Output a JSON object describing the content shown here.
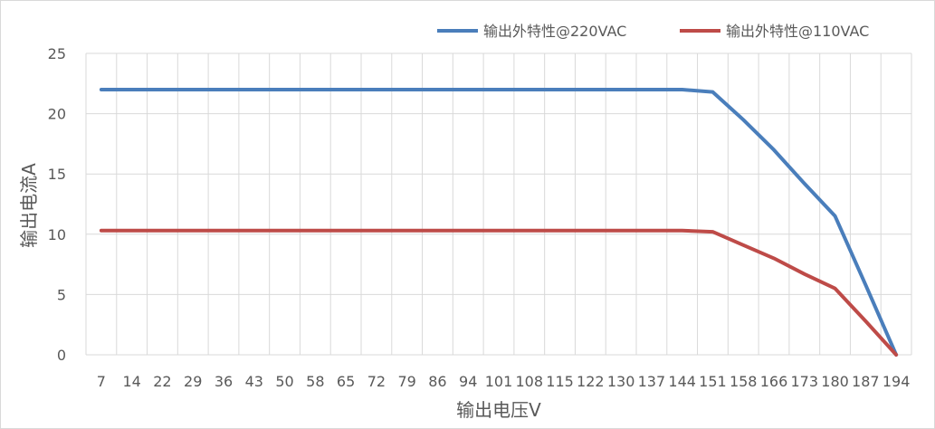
{
  "chart_data": {
    "type": "line",
    "title": "",
    "xlabel": "输出电压V",
    "ylabel": "输出电流A",
    "ylim": [
      0,
      25
    ],
    "yticks": [
      "0",
      "5",
      "10",
      "15",
      "20",
      "25"
    ],
    "categories": [
      "7",
      "14",
      "22",
      "29",
      "36",
      "43",
      "50",
      "58",
      "65",
      "72",
      "79",
      "86",
      "94",
      "101",
      "108",
      "115",
      "122",
      "130",
      "137",
      "144",
      "151",
      "158",
      "166",
      "173",
      "180",
      "187",
      "194"
    ],
    "grid": true,
    "legend_position": "top-right",
    "series": [
      {
        "name": "输出外特性@220VAC",
        "color": "#4a7ebb",
        "values": [
          22,
          22,
          22,
          22,
          22,
          22,
          22,
          22,
          22,
          22,
          22,
          22,
          22,
          22,
          22,
          22,
          22,
          22,
          22,
          22,
          21.8,
          19.5,
          17,
          14.2,
          11.5,
          5.8,
          0
        ]
      },
      {
        "name": "输出外特性@110VAC",
        "color": "#be4b48",
        "values": [
          10.3,
          10.3,
          10.3,
          10.3,
          10.3,
          10.3,
          10.3,
          10.3,
          10.3,
          10.3,
          10.3,
          10.3,
          10.3,
          10.3,
          10.3,
          10.3,
          10.3,
          10.3,
          10.3,
          10.3,
          10.2,
          9.1,
          8,
          6.7,
          5.5,
          2.8,
          0
        ]
      }
    ]
  }
}
